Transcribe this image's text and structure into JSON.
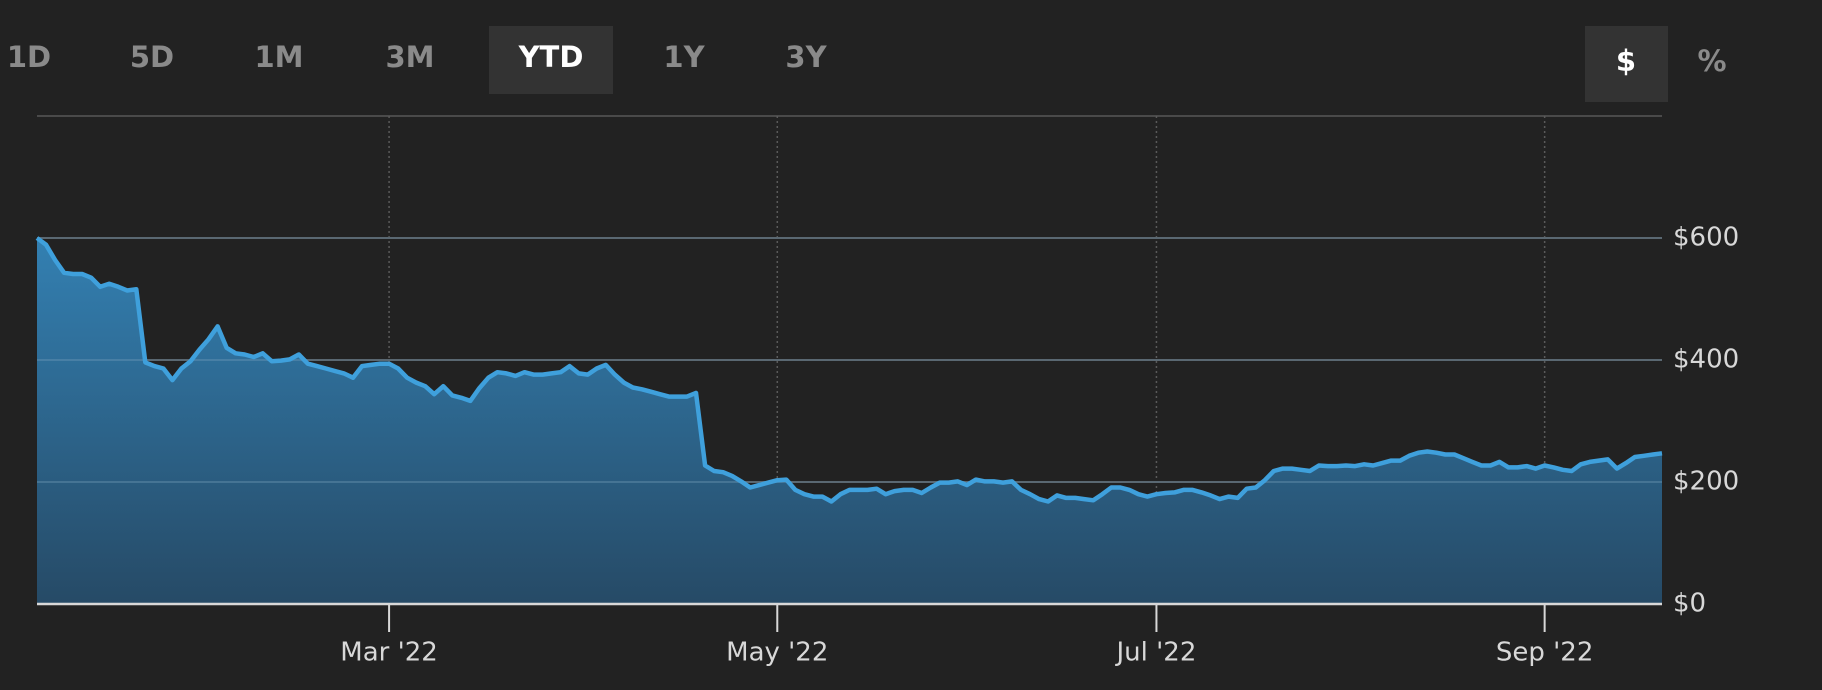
{
  "ranges": {
    "items": [
      "1D",
      "5D",
      "1M",
      "3M",
      "YTD",
      "1Y",
      "3Y"
    ],
    "selected": 4
  },
  "units": {
    "items": [
      "$",
      "%"
    ],
    "selected": 0
  },
  "chart_data": {
    "type": "area",
    "color": "#3fa0dc",
    "xlim": [
      0,
      180
    ],
    "xticks": [
      {
        "value": 39,
        "label": "Mar '22"
      },
      {
        "value": 82,
        "label": "May '22"
      },
      {
        "value": 124,
        "label": "Jul '22"
      },
      {
        "value": 167,
        "label": "Sep '22"
      }
    ],
    "ylim": [
      0,
      800
    ],
    "yticks": [
      {
        "value": 0,
        "label": "$0"
      },
      {
        "value": 200,
        "label": "$200"
      },
      {
        "value": 400,
        "label": "$400"
      },
      {
        "value": 600,
        "label": "$600"
      }
    ],
    "grid": true,
    "values": [
      600,
      589,
      564,
      543,
      541,
      541,
      535,
      520,
      525,
      520,
      514,
      516,
      396,
      390,
      386,
      367,
      386,
      398,
      417,
      434,
      455,
      420,
      411,
      409,
      405,
      411,
      398,
      399,
      401,
      409,
      394,
      390,
      386,
      382,
      378,
      371,
      390,
      392,
      394,
      394,
      386,
      371,
      363,
      357,
      344,
      357,
      342,
      338,
      333,
      354,
      371,
      380,
      378,
      374,
      380,
      376,
      376,
      378,
      380,
      390,
      378,
      376,
      386,
      392,
      376,
      363,
      355,
      352,
      348,
      344,
      340,
      340,
      340,
      346,
      227,
      218,
      216,
      210,
      201,
      191,
      195,
      199,
      203,
      204,
      187,
      180,
      176,
      176,
      168,
      180,
      187,
      187,
      187,
      189,
      180,
      185,
      187,
      187,
      182,
      191,
      199,
      199,
      201,
      195,
      204,
      201,
      201,
      199,
      201,
      187,
      180,
      172,
      168,
      178,
      174,
      174,
      172,
      170,
      180,
      191,
      191,
      187,
      180,
      176,
      180,
      182,
      183,
      187,
      187,
      183,
      178,
      172,
      176,
      174,
      189,
      191,
      203,
      218,
      222,
      222,
      220,
      218,
      227,
      226,
      226,
      227,
      226,
      229,
      227,
      231,
      235,
      235,
      243,
      248,
      250,
      248,
      245,
      245,
      239,
      233,
      227,
      227,
      233,
      224,
      224,
      226,
      222,
      227,
      224,
      220,
      218,
      229,
      233,
      235,
      237,
      222,
      231,
      241,
      243,
      245,
      247
    ]
  }
}
